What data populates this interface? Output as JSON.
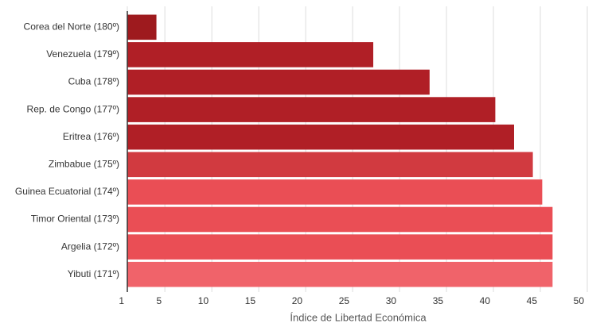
{
  "chart_data": {
    "type": "hbar",
    "x_label": "Índice de Libertad Económica",
    "categories": [
      "Corea del Norte (180º)",
      "Venezuela (179º)",
      "Cuba (178º)",
      "Rep. de Congo (177º)",
      "Eritrea (176º)",
      "Zimbabue (175º)",
      "Guinea Ecuatorial (174º)",
      "Timor Oriental (173º)",
      "Argelia (172º)",
      "Yibuti (171º)"
    ],
    "values": [
      4.1,
      27.2,
      33.2,
      40.2,
      42.2,
      44.2,
      45.2,
      46.3,
      46.3,
      46.3
    ],
    "colors": [
      "#9e1a1e",
      "#b01f26",
      "#b01f26",
      "#b01f26",
      "#b01f26",
      "#d13a40",
      "#ea4e55",
      "#ea4e55",
      "#ea4e55",
      "#f0636a"
    ],
    "xlim": [
      1,
      50
    ],
    "xticks": [
      1,
      5,
      10,
      15,
      20,
      25,
      30,
      35,
      40,
      45,
      50
    ],
    "grid": true
  }
}
